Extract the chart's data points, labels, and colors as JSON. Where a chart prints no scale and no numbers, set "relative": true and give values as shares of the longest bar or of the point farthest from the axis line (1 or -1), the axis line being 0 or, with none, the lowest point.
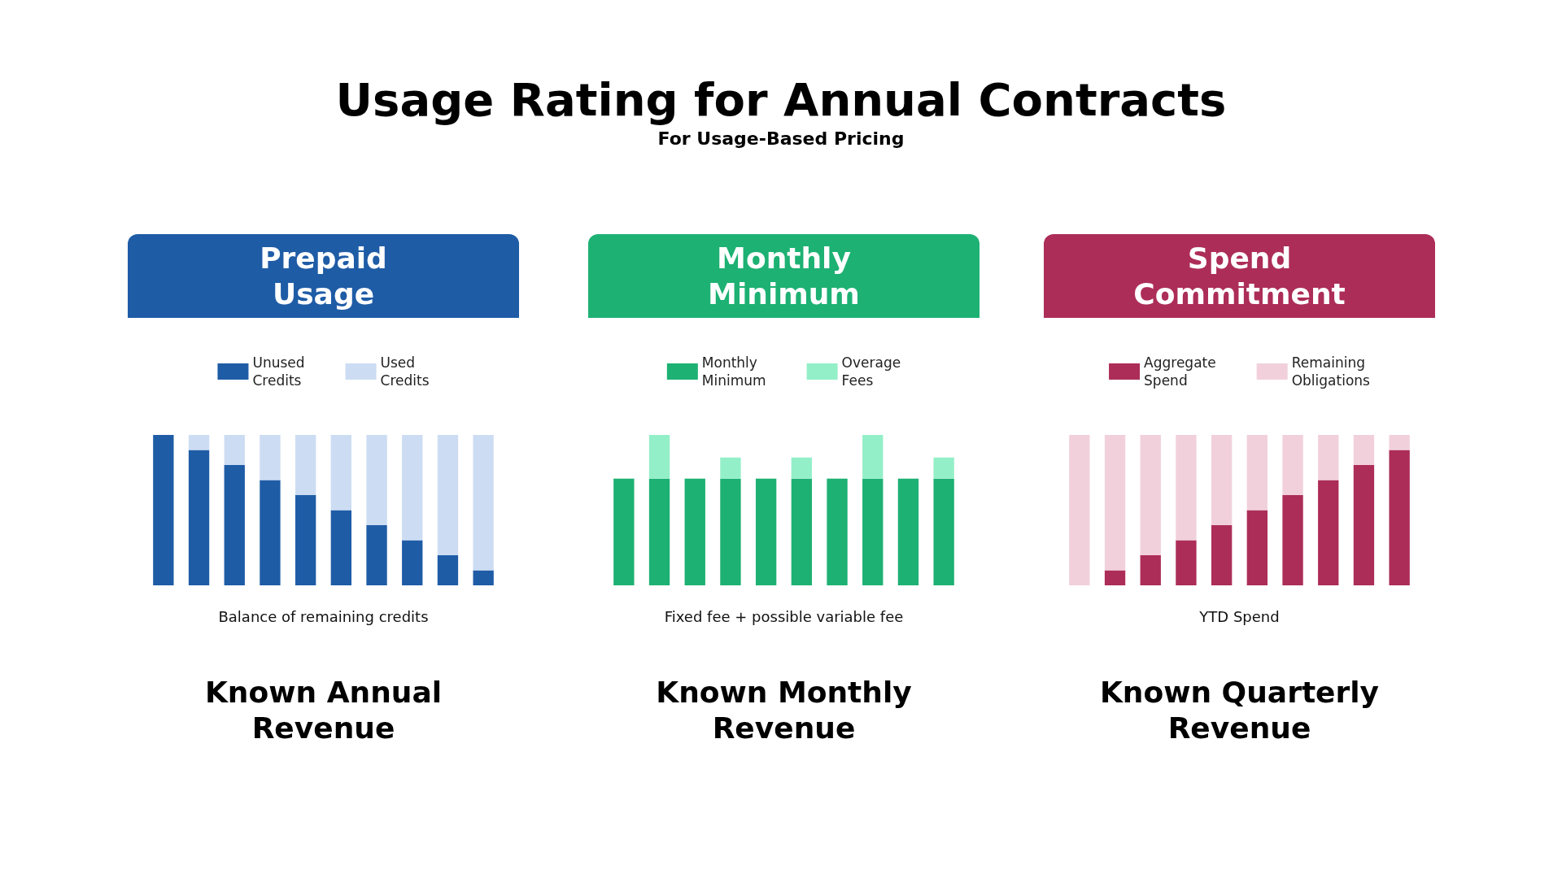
{
  "chart_data": [
    {
      "type": "other",
      "title": "Usage Rating for Annual Contracts",
      "subtitle": "For Usage-Based Pricing"
    },
    {
      "type": "bar",
      "title": "Prepaid Usage",
      "xlabel": "Balance of remaining credits",
      "annotations": [
        "Known Annual Revenue"
      ],
      "stacked": true,
      "relative": true,
      "legend": "top",
      "categories": [
        null,
        null,
        null,
        null,
        null,
        null,
        null,
        null,
        null,
        null
      ],
      "series": [
        {
          "name": "Unused Credits",
          "color": "#1f5ca6",
          "values": [
            1,
            0.9,
            0.8,
            0.7,
            0.6,
            0.5,
            0.4,
            0.3,
            0.2,
            0.1
          ]
        },
        {
          "name": "Used Credits",
          "color": "#ccdcf3",
          "values": [
            0,
            0.1,
            0.2,
            0.3,
            0.4,
            0.5,
            0.6,
            0.7,
            0.8,
            0.9
          ]
        }
      ]
    },
    {
      "type": "bar",
      "title": "Monthly Minimum",
      "xlabel": "Fixed fee + possible variable fee",
      "annotations": [
        "Known Monthly Revenue"
      ],
      "stacked": true,
      "relative": true,
      "legend": "top",
      "categories": [
        null,
        null,
        null,
        null,
        null,
        null,
        null,
        null,
        null,
        null
      ],
      "series": [
        {
          "name": "Monthly Minimum",
          "color": "#1db173",
          "values": [
            0.71,
            0.71,
            0.71,
            0.71,
            0.71,
            0.71,
            0.71,
            0.71,
            0.71,
            0.71
          ]
        },
        {
          "name": "Overage Fees",
          "color": "#93efc8",
          "values": [
            0,
            0.29,
            0,
            0.14,
            0,
            0.14,
            0,
            0.29,
            0,
            0.14
          ]
        }
      ]
    },
    {
      "type": "bar",
      "title": "Spend Commitment",
      "xlabel": "YTD Spend",
      "annotations": [
        "Known Quarterly Revenue"
      ],
      "stacked": true,
      "relative": true,
      "legend": "top",
      "categories": [
        null,
        null,
        null,
        null,
        null,
        null,
        null,
        null,
        null,
        null
      ],
      "series": [
        {
          "name": "Aggregate Spend",
          "color": "#ac2d58",
          "values": [
            0,
            0.1,
            0.2,
            0.3,
            0.4,
            0.5,
            0.6,
            0.7,
            0.8,
            0.9
          ]
        },
        {
          "name": "Remaining Obligations",
          "color": "#f1d0dc",
          "values": [
            1,
            0.9,
            0.8,
            0.7,
            0.6,
            0.5,
            0.4,
            0.3,
            0.2,
            0.1
          ]
        }
      ]
    }
  ]
}
